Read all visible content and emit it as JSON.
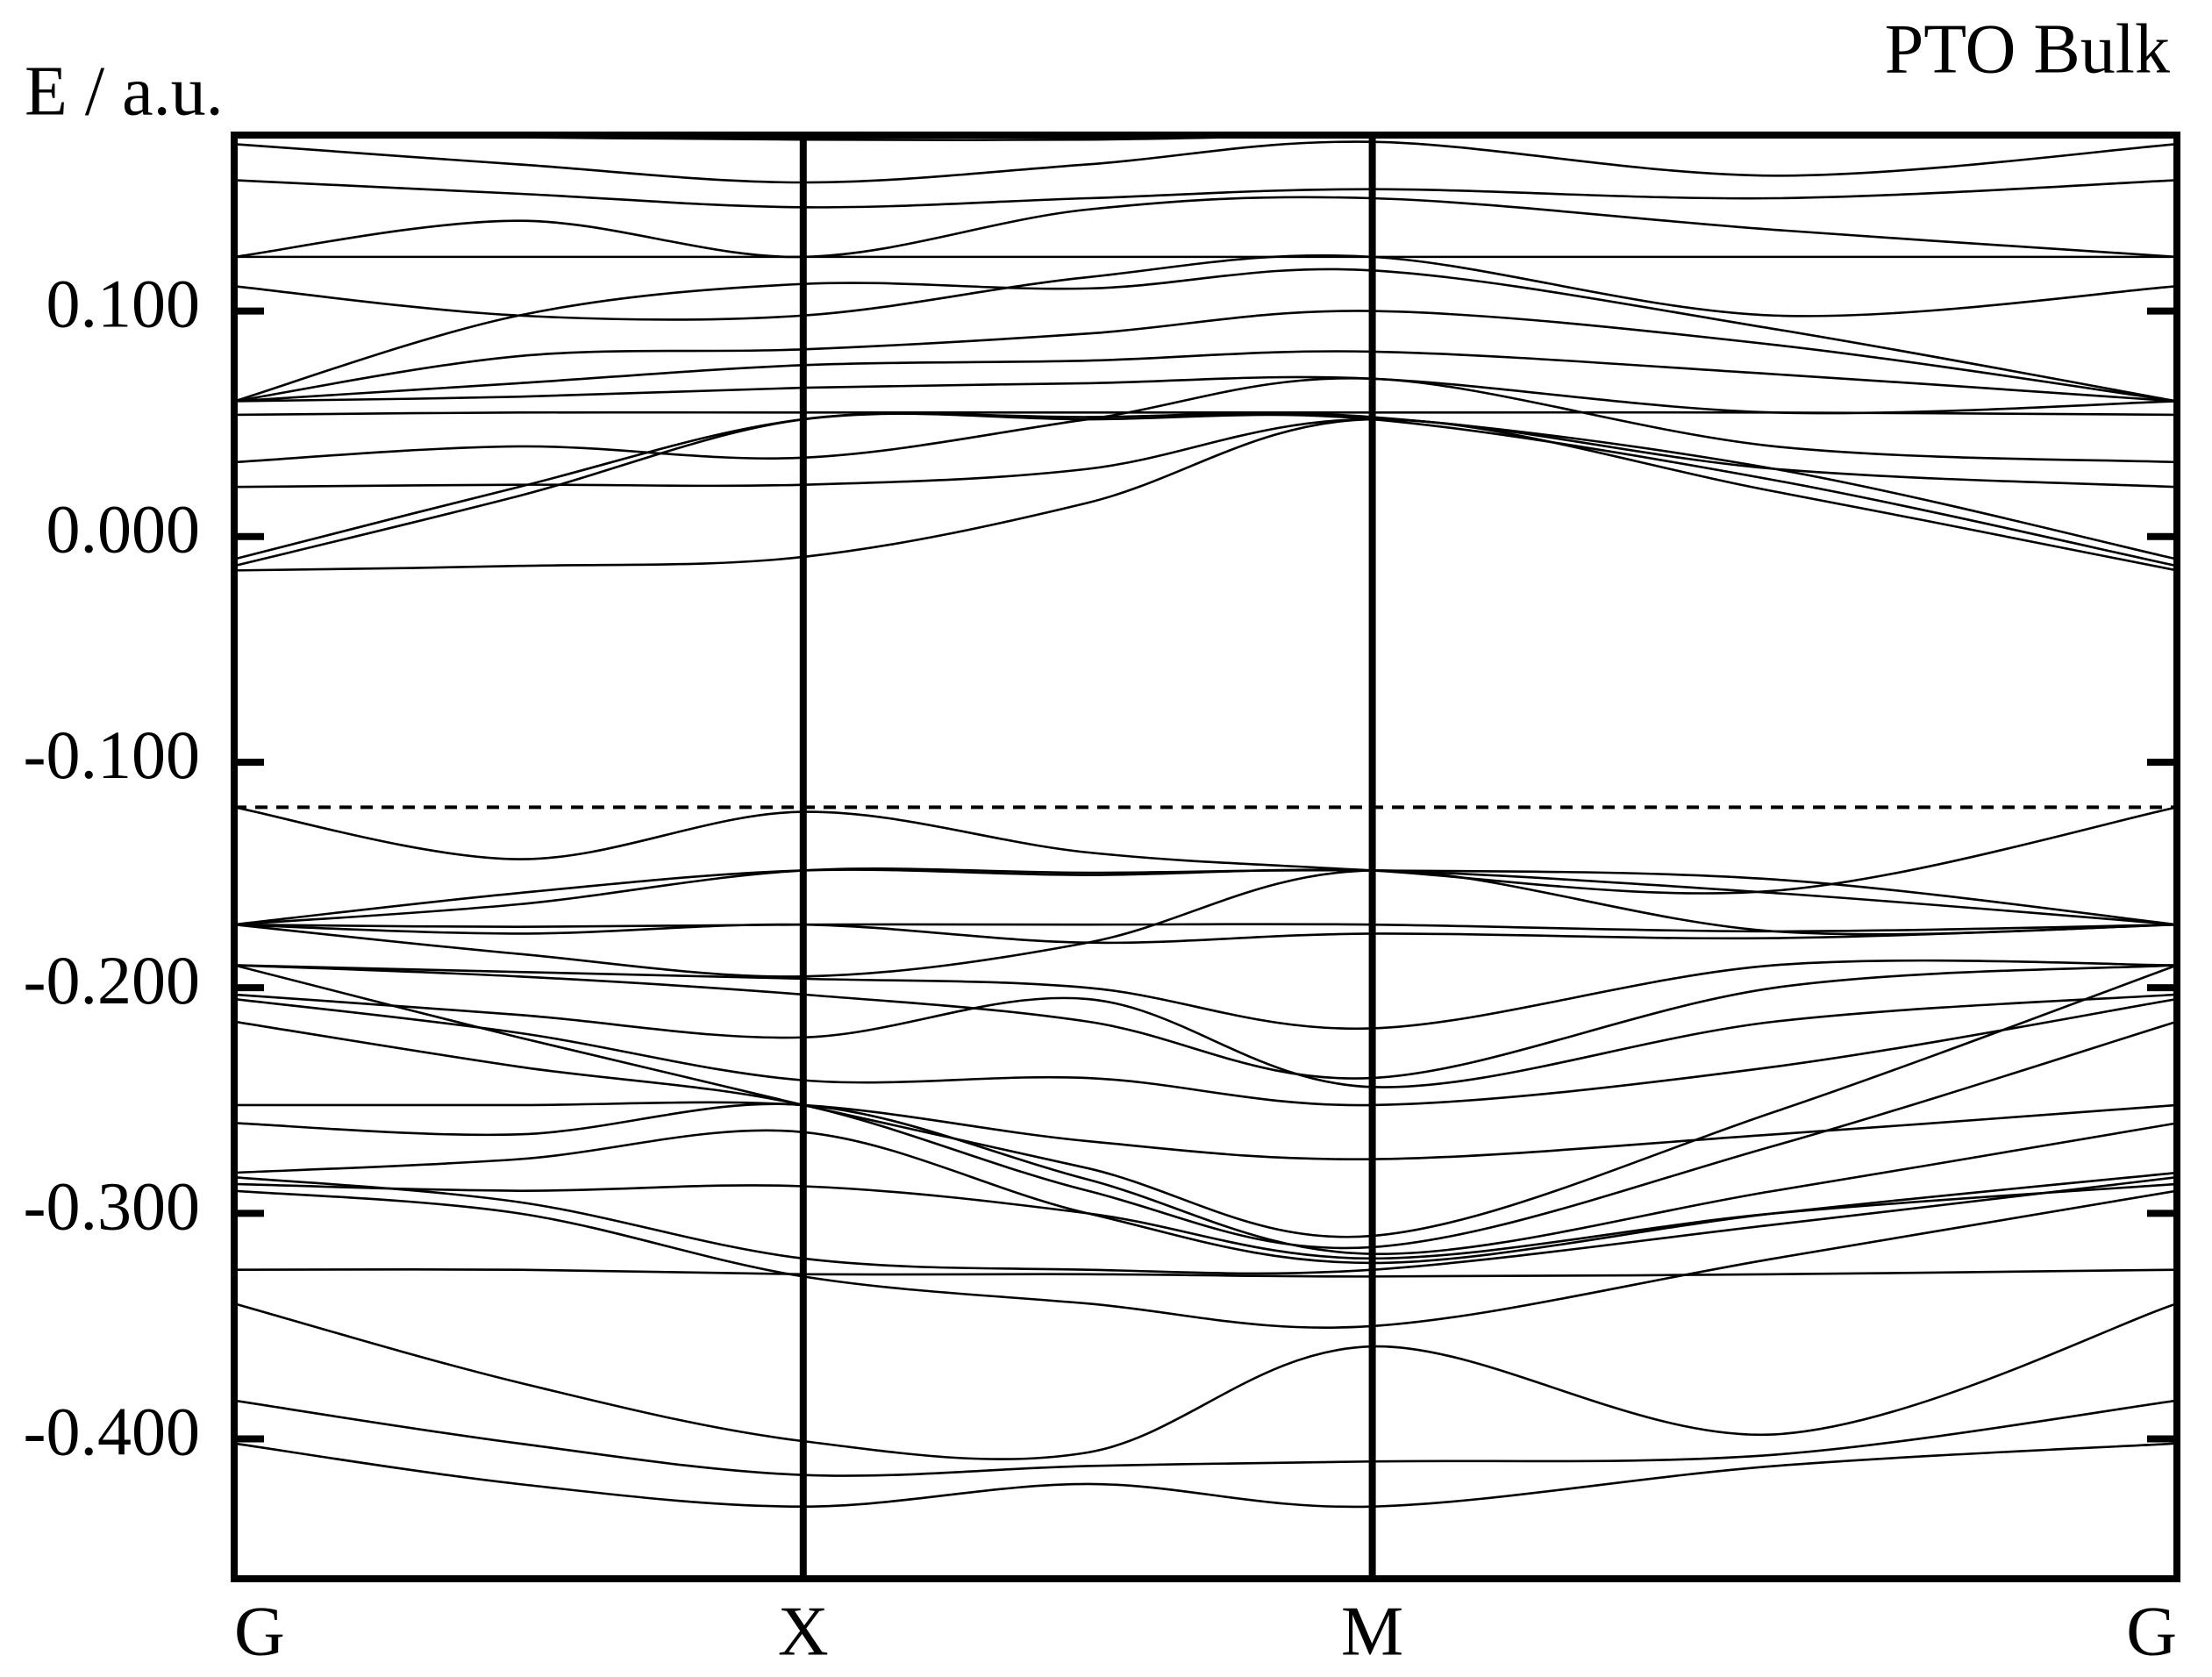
{
  "chart_data": {
    "type": "line",
    "title": "PTO Bulk",
    "y_label": "E / a.u.",
    "x": [
      0,
      0.5,
      1,
      1.5,
      2,
      2.707,
      3.414
    ],
    "xlim": [
      0,
      3.414
    ],
    "xticks": [
      {
        "value": 0,
        "label": "G"
      },
      {
        "value": 1,
        "label": "X"
      },
      {
        "value": 2,
        "label": "M"
      },
      {
        "value": 3.414,
        "label": "G"
      }
    ],
    "ylim": [
      -0.462,
      0.178
    ],
    "yticks": [
      {
        "value": 0.1,
        "label": "0.100"
      },
      {
        "value": 0,
        "label": "0.000"
      },
      {
        "value": -0.1,
        "label": "-0.100"
      },
      {
        "value": -0.2,
        "label": "-0.200"
      },
      {
        "value": -0.3,
        "label": "-0.300"
      },
      {
        "value": -0.4,
        "label": "-0.400"
      }
    ],
    "fermi_level": -0.12,
    "color": "#000000",
    "series": [
      {
        "values": [
          -0.402,
          -0.42,
          -0.43,
          -0.42,
          -0.43,
          -0.412,
          -0.402
        ]
      },
      {
        "values": [
          -0.383,
          -0.402,
          -0.416,
          -0.412,
          -0.41,
          -0.407,
          -0.383
        ]
      },
      {
        "values": [
          -0.34,
          -0.375,
          -0.401,
          -0.406,
          -0.359,
          -0.398,
          -0.34
        ]
      },
      {
        "values": [
          -0.325,
          -0.325,
          -0.327,
          -0.327,
          -0.328,
          -0.327,
          -0.325
        ]
      },
      {
        "values": [
          -0.29,
          -0.3,
          -0.328,
          -0.34,
          -0.35,
          -0.32,
          -0.29
        ]
      },
      {
        "values": [
          -0.284,
          -0.295,
          -0.32,
          -0.325,
          -0.325,
          -0.305,
          -0.284
        ]
      },
      {
        "values": [
          -0.282,
          -0.276,
          -0.264,
          -0.3,
          -0.322,
          -0.3,
          -0.282
        ]
      },
      {
        "values": [
          -0.287,
          -0.29,
          -0.288,
          -0.3,
          -0.32,
          -0.3,
          -0.287
        ]
      },
      {
        "values": [
          -0.26,
          -0.265,
          -0.252,
          -0.285,
          -0.318,
          -0.29,
          -0.26
        ]
      },
      {
        "values": [
          -0.252,
          -0.252,
          -0.252,
          -0.268,
          -0.276,
          -0.265,
          -0.252
        ]
      },
      {
        "values": [
          -0.215,
          -0.235,
          -0.252,
          -0.29,
          -0.315,
          -0.27,
          -0.215
        ]
      },
      {
        "values": [
          -0.19,
          -0.222,
          -0.252,
          -0.28,
          -0.31,
          -0.255,
          -0.19
        ]
      },
      {
        "values": [
          -0.205,
          -0.22,
          -0.241,
          -0.24,
          -0.252,
          -0.235,
          -0.205
        ]
      },
      {
        "values": [
          -0.203,
          -0.212,
          -0.222,
          -0.205,
          -0.244,
          -0.215,
          -0.203
        ]
      },
      {
        "values": [
          -0.19,
          -0.195,
          -0.203,
          -0.215,
          -0.24,
          -0.2,
          -0.19
        ]
      },
      {
        "values": [
          -0.19,
          -0.193,
          -0.196,
          -0.2,
          -0.218,
          -0.19,
          -0.19
        ]
      },
      {
        "values": [
          -0.172,
          -0.176,
          -0.172,
          -0.18,
          -0.176,
          -0.178,
          -0.172
        ]
      },
      {
        "values": [
          -0.172,
          -0.173,
          -0.172,
          -0.172,
          -0.172,
          -0.175,
          -0.172
        ]
      },
      {
        "values": [
          -0.172,
          -0.185,
          -0.195,
          -0.18,
          -0.148,
          -0.175,
          -0.172
        ]
      },
      {
        "values": [
          -0.172,
          -0.158,
          -0.148,
          -0.15,
          -0.148,
          -0.158,
          -0.172
        ]
      },
      {
        "values": [
          -0.172,
          -0.163,
          -0.148,
          -0.149,
          -0.148,
          -0.152,
          -0.172
        ]
      },
      {
        "values": [
          -0.12,
          -0.143,
          -0.122,
          -0.14,
          -0.148,
          -0.157,
          -0.12
        ]
      },
      {
        "values": [
          -0.015,
          -0.013,
          -0.009,
          0.015,
          0.052,
          0.02,
          -0.015
        ]
      },
      {
        "values": [
          -0.013,
          0.018,
          0.052,
          0.052,
          0.052,
          0.025,
          -0.013
        ]
      },
      {
        "values": [
          -0.01,
          0.022,
          0.052,
          0.053,
          0.053,
          0.03,
          -0.01
        ]
      },
      {
        "values": [
          0.022,
          0.023,
          0.023,
          0.03,
          0.052,
          0.03,
          0.022
        ]
      },
      {
        "values": [
          0.033,
          0.04,
          0.035,
          0.052,
          0.07,
          0.04,
          0.033
        ]
      },
      {
        "values": [
          0.054,
          0.055,
          0.055,
          0.055,
          0.055,
          0.055,
          0.054
        ]
      },
      {
        "values": [
          0.06,
          0.062,
          0.066,
          0.068,
          0.07,
          0.055,
          0.06
        ]
      },
      {
        "values": [
          0.06,
          0.068,
          0.076,
          0.078,
          0.082,
          0.072,
          0.06
        ]
      },
      {
        "values": [
          0.06,
          0.08,
          0.083,
          0.09,
          0.1,
          0.085,
          0.06
        ]
      },
      {
        "values": [
          0.06,
          0.098,
          0.112,
          0.11,
          0.118,
          0.092,
          0.06
        ]
      },
      {
        "values": [
          0.111,
          0.098,
          0.098,
          0.115,
          0.124,
          0.098,
          0.111
        ]
      },
      {
        "values": [
          0.124,
          0.124,
          0.124,
          0.124,
          0.124,
          0.124,
          0.124
        ]
      },
      {
        "values": [
          0.124,
          0.14,
          0.124,
          0.145,
          0.15,
          0.136,
          0.124
        ]
      },
      {
        "values": [
          0.158,
          0.152,
          0.146,
          0.15,
          0.154,
          0.15,
          0.158
        ]
      },
      {
        "values": [
          0.174,
          0.165,
          0.157,
          0.165,
          0.175,
          0.16,
          0.174
        ]
      },
      {
        "values": [
          0.178,
          0.177,
          0.176,
          0.176,
          0.178,
          0.178,
          0.178
        ]
      }
    ]
  }
}
